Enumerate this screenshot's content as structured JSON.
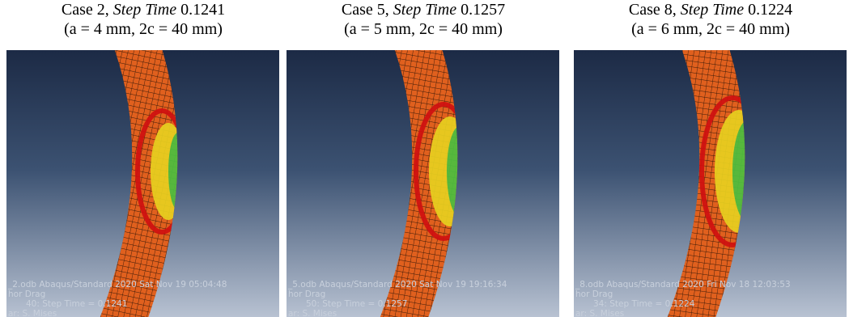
{
  "panels": [
    {
      "caption": {
        "case": "Case 2,",
        "step_label": "Step Time",
        "step_value": "0.1241",
        "dims": "(a = 4 mm, 2c = 40 mm)"
      },
      "overlay": {
        "line1": "_2.odb    Abaqus/Standard 2020    Sat Nov 19 05:04:48",
        "line2": "hor Drag",
        "line3": "40: Step Time =    0.1241",
        "line4": "ar: S. Mises"
      }
    },
    {
      "caption": {
        "case": "Case 5,",
        "step_label": "Step Time",
        "step_value": "0.1257",
        "dims": "(a = 5 mm, 2c = 40 mm)"
      },
      "overlay": {
        "line1": "_5.odb    Abaqus/Standard 2020    Sat Nov 19 19:16:34",
        "line2": "hor Drag",
        "line3": "50: Step Time =    0.1257",
        "line4": "ar: S. Mises"
      }
    },
    {
      "caption": {
        "case": "Case 8,",
        "step_label": "Step Time",
        "step_value": "0.1224",
        "dims": "(a = 6 mm, 2c = 40 mm)"
      },
      "overlay": {
        "line1": "_8.odb    Abaqus/Standard 2020    Fri Nov 18 12:03:53",
        "line2": "hor Drag",
        "line3": "34: Step Time =    0.1224",
        "line4": "ar: S. Mises"
      }
    }
  ]
}
